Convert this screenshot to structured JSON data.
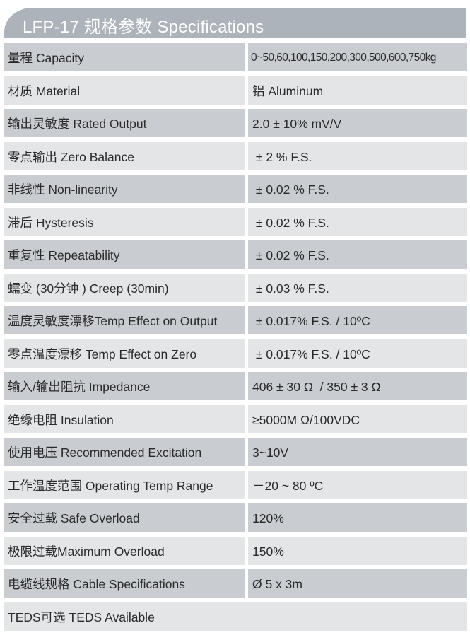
{
  "header": {
    "title": "LFP-17 规格参数 Specifications"
  },
  "colors": {
    "header_bg": "#adb3ba",
    "row_dark": "#c9cdd2",
    "row_light": "#e3e5e7"
  },
  "specs": [
    {
      "label": "量程 Capacity",
      "value": "0~50,60,100,150,200,300,500,600,750kg"
    },
    {
      "label": "材质 Material",
      "value": "铝 Aluminum"
    },
    {
      "label": "输出灵敏度 Rated Output",
      "value": "2.0 ± 10% mV/V"
    },
    {
      "label": "零点输出  Zero Balance",
      "value": " ± 2 % F.S."
    },
    {
      "label": "非线性 Non-linearity",
      "value": " ± 0.02 % F.S."
    },
    {
      "label": "滞后 Hysteresis",
      "value": " ± 0.02 % F.S."
    },
    {
      "label": "重复性 Repeatability",
      "value": " ± 0.02 % F.S."
    },
    {
      "label": "蠕变 (30分钟 ) Creep (30min)",
      "value": " ± 0.03 % F.S."
    },
    {
      "label": "温度灵敏度漂移Temp Effect on Output",
      "value": " ± 0.017% F.S. / 10ºC"
    },
    {
      "label": "零点温度漂移 Temp Effect on Zero",
      "value": " ± 0.017% F.S. / 10ºC"
    },
    {
      "label": "输入/输出阻抗 Impedance",
      "value": "406 ± 30 Ω  / 350 ± 3 Ω"
    },
    {
      "label": "绝缘电阻  Insulation",
      "value": "≥5000M Ω/100VDC"
    },
    {
      "label": "使用电压 Recommended Excitation",
      "value": "3~10V"
    },
    {
      "label": "工作温度范围 Operating Temp  Range",
      "value": "－20 ~ 80 ºC"
    },
    {
      "label": "安全过载 Safe Overload",
      "value": "120%"
    },
    {
      "label": "极限过载Maximum Overload",
      "value": "150%"
    },
    {
      "label": "电缆线规格 Cable Specifications",
      "value": "Ø 5 x 3m"
    }
  ],
  "footer_row": {
    "label": "TEDS可选 TEDS Available"
  }
}
